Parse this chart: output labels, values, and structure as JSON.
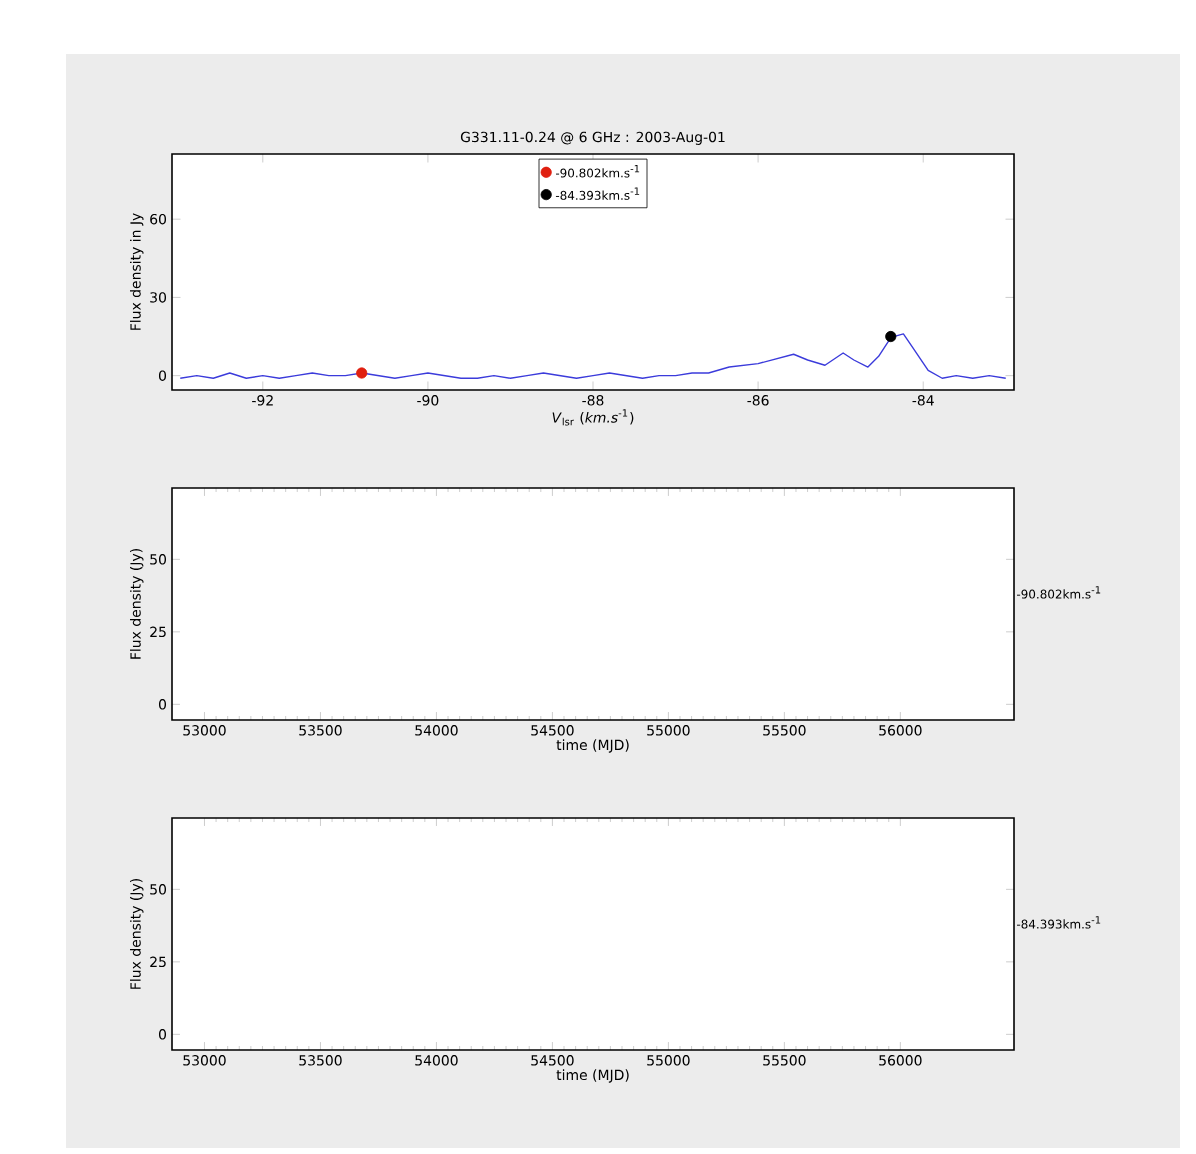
{
  "chart_data": [
    {
      "type": "line",
      "title": "G331.11-0.24 @ 6 GHz : 2003-Aug-01",
      "xlabel": "*V*$_{lsr}$ (*km.s*$^{-1}$)",
      "ylabel": "Flux density in Jy",
      "xlim": [
        -93.1,
        -82.9
      ],
      "ylim": [
        -5.5,
        85
      ],
      "xticks": [
        -92,
        -90,
        -88,
        -86,
        -84
      ],
      "yticks": [
        0,
        30,
        60
      ],
      "legend": "top",
      "grid": false,
      "series": [
        {
          "color": "#3b3bdb",
          "marker": "none",
          "x": [
            -93.0,
            -92.8,
            -92.6,
            -92.4,
            -92.2,
            -92.0,
            -91.8,
            -91.6,
            -91.4,
            -91.2,
            -91.0,
            -90.8,
            -90.6,
            -90.4,
            -90.2,
            -90.0,
            -89.8,
            -89.6,
            -89.4,
            -89.2,
            -89.0,
            -88.8,
            -88.6,
            -88.4,
            -88.2,
            -88.0,
            -87.8,
            -87.6,
            -87.4,
            -87.2,
            -87.0,
            -86.8,
            -86.6,
            -86.35,
            -86.0,
            -85.57,
            -85.4,
            -85.19,
            -84.97,
            -84.84,
            -84.67,
            -84.54,
            -84.39,
            -84.24,
            -84.11,
            -83.94,
            -83.77,
            -83.6,
            -83.4,
            -83.2,
            -83.0
          ],
          "values": [
            -1,
            0,
            -1,
            1,
            -1,
            0,
            -1,
            0,
            1,
            0,
            0,
            1,
            0,
            -1,
            0,
            1,
            0,
            -1,
            -1,
            0,
            -1,
            0,
            1,
            0,
            -1,
            0,
            1,
            0,
            -1,
            0,
            0,
            1,
            1,
            3.3,
            4.6,
            8.2,
            6,
            4,
            8.7,
            6,
            3.3,
            7.4,
            14.7,
            16,
            10,
            2,
            -1,
            0,
            -1,
            0,
            -1
          ]
        },
        {
          "type": "scatter",
          "marker": "circle",
          "name": "-90.802km.s$^{-1}$",
          "color": "#e02010",
          "x": [
            -90.802
          ],
          "values": [
            1
          ]
        },
        {
          "type": "scatter",
          "marker": "circle",
          "name": "-84.393km.s$^{-1}$",
          "color": "#000000",
          "x": [
            -84.393
          ],
          "values": [
            15
          ]
        }
      ]
    },
    {
      "type": "scatter",
      "xlabel": "time (MJD)",
      "ylabel": "Flux density (Jy)",
      "xlim": [
        52860,
        56490
      ],
      "ylim": [
        -5.4,
        74.6
      ],
      "xticks": [
        53000,
        53500,
        54000,
        54500,
        55000,
        55500,
        56000
      ],
      "yticks": [
        0,
        25,
        50
      ],
      "annotations": [
        "-90.802km.s$^{-1}$"
      ]
    },
    {
      "type": "scatter",
      "xlabel": "time (MJD)",
      "ylabel": "Flux density (Jy)",
      "xlim": [
        52860,
        56490
      ],
      "ylim": [
        -5.4,
        74.6
      ],
      "xticks": [
        53000,
        53500,
        54000,
        54500,
        55000,
        55500,
        56000
      ],
      "yticks": [
        0,
        25,
        50
      ],
      "annotations": [
        "-84.393km.s$^{-1}$"
      ]
    }
  ]
}
